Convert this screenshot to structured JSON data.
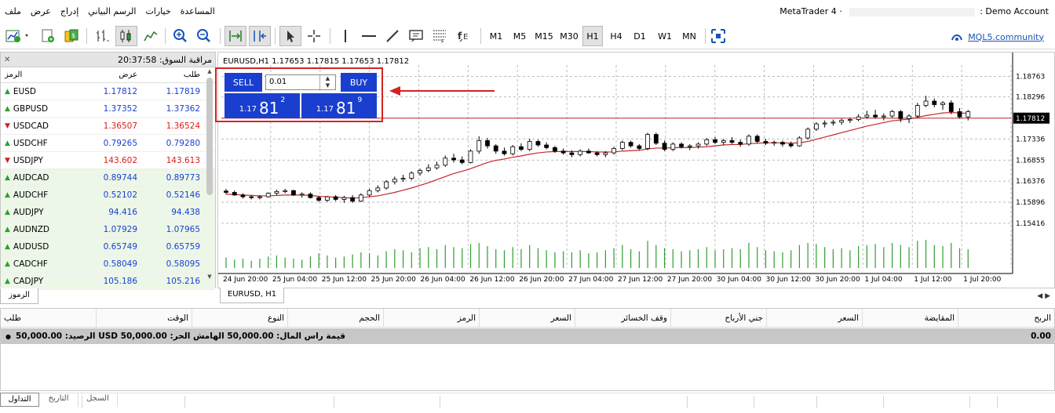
{
  "menubar": {
    "items": [
      "ملف",
      "عرض",
      "إدراج",
      "الرسم البياني",
      "خيارات",
      "المساعدة"
    ],
    "window_title_left": "MetaTrader 4 · ",
    "window_title_right": ": Demo Account"
  },
  "toolbar": {
    "timeframes": [
      "M1",
      "M5",
      "M15",
      "M30",
      "H1",
      "H4",
      "D1",
      "W1",
      "MN"
    ],
    "selected_timeframe": "H1",
    "mql5_link": "MQL5.community"
  },
  "market_watch": {
    "title": "مراقبة السوق:",
    "time": "20:37:58",
    "col_symbol": "الرمز",
    "col_bid": "عرض",
    "col_ask": "طلب",
    "tab_label": "الرموز",
    "rows": [
      {
        "symbol": "EUSD",
        "bid": "1.17812",
        "ask": "1.17819",
        "dir": "up",
        "color": "#1a3fcf",
        "hl": false
      },
      {
        "symbol": "GBPUSD",
        "bid": "1.37352",
        "ask": "1.37362",
        "dir": "up",
        "color": "#1a3fcf",
        "hl": false
      },
      {
        "symbol": "USDCAD",
        "bid": "1.36507",
        "ask": "1.36524",
        "dir": "down",
        "color": "#e01b1b",
        "hl": false
      },
      {
        "symbol": "USDCHF",
        "bid": "0.79265",
        "ask": "0.79280",
        "dir": "up",
        "color": "#1a3fcf",
        "hl": false
      },
      {
        "symbol": "USDJPY",
        "bid": "143.602",
        "ask": "143.613",
        "dir": "down",
        "color": "#e01b1b",
        "hl": false
      },
      {
        "symbol": "AUDCAD",
        "bid": "0.89744",
        "ask": "0.89773",
        "dir": "up",
        "color": "#1a3fcf",
        "hl": true
      },
      {
        "symbol": "AUDCHF",
        "bid": "0.52102",
        "ask": "0.52146",
        "dir": "up",
        "color": "#1a3fcf",
        "hl": true
      },
      {
        "symbol": "AUDJPY",
        "bid": "94.416",
        "ask": "94.438",
        "dir": "up",
        "color": "#1a3fcf",
        "hl": true
      },
      {
        "symbol": "AUDNZD",
        "bid": "1.07929",
        "ask": "1.07965",
        "dir": "up",
        "color": "#1a3fcf",
        "hl": true
      },
      {
        "symbol": "AUDUSD",
        "bid": "0.65749",
        "ask": "0.65759",
        "dir": "up",
        "color": "#1a3fcf",
        "hl": true
      },
      {
        "symbol": "CADCHF",
        "bid": "0.58049",
        "ask": "0.58095",
        "dir": "up",
        "color": "#1a3fcf",
        "hl": true
      },
      {
        "symbol": "CADJPY",
        "bid": "105.186",
        "ask": "105.216",
        "dir": "up",
        "color": "#1a3fcf",
        "hl": true
      }
    ]
  },
  "chart": {
    "header": "EURUSD,H1  1.17653 1.17815 1.17653 1.17812",
    "tab_label": "EURUSD, H1",
    "one_click": {
      "sell_label": "SELL",
      "buy_label": "BUY",
      "lot": "0.01",
      "sell_price_small": "1.17",
      "sell_price_big": "81",
      "sell_price_sup": "2",
      "buy_price_small": "1.17",
      "buy_price_big": "81",
      "buy_price_sup": "9"
    },
    "current_price_label": "1.17812",
    "price_axis": [
      "1.18763",
      "1.18296",
      "1.17812",
      "1.17336",
      "1.16855",
      "1.16376",
      "1.15896",
      "1.15416"
    ],
    "time_axis": [
      "24 Jun 20:00",
      "25 Jun 04:00",
      "25 Jun 12:00",
      "25 Jun 20:00",
      "26 Jun 04:00",
      "26 Jun 12:00",
      "26 Jun 20:00",
      "27 Jun 04:00",
      "27 Jun 12:00",
      "27 Jun 20:00",
      "30 Jun 04:00",
      "30 Jun 12:00",
      "30 Jun 20:00",
      "1 Jul 04:00",
      "1 Jul 12:00",
      "1 Jul 20:00"
    ],
    "colors": {
      "ma": "#c62828",
      "bull": "#ffffff",
      "bear": "#000000",
      "volume": "#2e9e2e",
      "price_line": "#c62828"
    }
  },
  "chart_data": {
    "type": "candlestick",
    "symbol": "EURUSD",
    "timeframe": "H1",
    "ylim": [
      1.152,
      1.1895
    ],
    "ohlc": [
      [
        1.1615,
        1.162,
        1.1608,
        1.1612
      ],
      [
        1.1612,
        1.1616,
        1.1604,
        1.1606
      ],
      [
        1.1606,
        1.161,
        1.1598,
        1.1602
      ],
      [
        1.1602,
        1.1605,
        1.1596,
        1.16
      ],
      [
        1.16,
        1.1606,
        1.1596,
        1.1602
      ],
      [
        1.1602,
        1.1612,
        1.16,
        1.161
      ],
      [
        1.161,
        1.1618,
        1.1606,
        1.1614
      ],
      [
        1.1614,
        1.162,
        1.161,
        1.1616
      ],
      [
        1.1616,
        1.1618,
        1.1604,
        1.1606
      ],
      [
        1.1606,
        1.1612,
        1.16,
        1.1608
      ],
      [
        1.1608,
        1.1612,
        1.1598,
        1.16
      ],
      [
        1.16,
        1.1604,
        1.159,
        1.1594
      ],
      [
        1.1594,
        1.1604,
        1.159,
        1.1602
      ],
      [
        1.1602,
        1.1606,
        1.1592,
        1.1596
      ],
      [
        1.1596,
        1.1604,
        1.1588,
        1.16
      ],
      [
        1.16,
        1.1606,
        1.1588,
        1.1592
      ],
      [
        1.1592,
        1.161,
        1.159,
        1.1606
      ],
      [
        1.1606,
        1.162,
        1.1602,
        1.1616
      ],
      [
        1.1616,
        1.1628,
        1.1612,
        1.1622
      ],
      [
        1.1622,
        1.164,
        1.1618,
        1.1636
      ],
      [
        1.1636,
        1.1648,
        1.163,
        1.1642
      ],
      [
        1.1642,
        1.1652,
        1.1636,
        1.1644
      ],
      [
        1.1644,
        1.166,
        1.164,
        1.1656
      ],
      [
        1.1656,
        1.1666,
        1.165,
        1.1662
      ],
      [
        1.1662,
        1.1676,
        1.1658,
        1.1668
      ],
      [
        1.1668,
        1.1682,
        1.1664,
        1.1674
      ],
      [
        1.1674,
        1.1696,
        1.167,
        1.169
      ],
      [
        1.169,
        1.17,
        1.168,
        1.1686
      ],
      [
        1.1686,
        1.1694,
        1.1676,
        1.168
      ],
      [
        1.168,
        1.171,
        1.1678,
        1.1706
      ],
      [
        1.1706,
        1.174,
        1.17,
        1.173
      ],
      [
        1.173,
        1.1736,
        1.1712,
        1.1718
      ],
      [
        1.1718,
        1.1722,
        1.17,
        1.1706
      ],
      [
        1.1706,
        1.1714,
        1.1696,
        1.17
      ],
      [
        1.17,
        1.172,
        1.1696,
        1.1716
      ],
      [
        1.1716,
        1.1724,
        1.1706,
        1.171
      ],
      [
        1.171,
        1.1734,
        1.1706,
        1.1728
      ],
      [
        1.1728,
        1.1732,
        1.1716,
        1.172
      ],
      [
        1.172,
        1.1726,
        1.171,
        1.1714
      ],
      [
        1.1714,
        1.1718,
        1.1702,
        1.1706
      ],
      [
        1.1706,
        1.1712,
        1.1698,
        1.1702
      ],
      [
        1.1702,
        1.1708,
        1.1692,
        1.1698
      ],
      [
        1.1698,
        1.171,
        1.1694,
        1.1706
      ],
      [
        1.1706,
        1.1712,
        1.17,
        1.1702
      ],
      [
        1.1702,
        1.1706,
        1.1694,
        1.1698
      ],
      [
        1.1698,
        1.1706,
        1.1692,
        1.1702
      ],
      [
        1.1702,
        1.1716,
        1.1698,
        1.1712
      ],
      [
        1.1712,
        1.173,
        1.1708,
        1.1726
      ],
      [
        1.1726,
        1.173,
        1.1714,
        1.1718
      ],
      [
        1.1718,
        1.1722,
        1.1708,
        1.1712
      ],
      [
        1.1712,
        1.1748,
        1.1708,
        1.1744
      ],
      [
        1.1744,
        1.1748,
        1.172,
        1.1724
      ],
      [
        1.1724,
        1.173,
        1.1706,
        1.171
      ],
      [
        1.171,
        1.1726,
        1.1706,
        1.1722
      ],
      [
        1.1722,
        1.1726,
        1.1712,
        1.1716
      ],
      [
        1.1716,
        1.1722,
        1.1708,
        1.1718
      ],
      [
        1.1718,
        1.1726,
        1.1712,
        1.1722
      ],
      [
        1.1722,
        1.1736,
        1.1718,
        1.1732
      ],
      [
        1.1732,
        1.1738,
        1.1722,
        1.1726
      ],
      [
        1.1726,
        1.1734,
        1.172,
        1.173
      ],
      [
        1.173,
        1.1738,
        1.1722,
        1.1726
      ],
      [
        1.1726,
        1.1732,
        1.1716,
        1.1722
      ],
      [
        1.1722,
        1.1744,
        1.1718,
        1.174
      ],
      [
        1.174,
        1.1744,
        1.1724,
        1.1728
      ],
      [
        1.1728,
        1.1734,
        1.172,
        1.1724
      ],
      [
        1.1724,
        1.173,
        1.1718,
        1.1726
      ],
      [
        1.1726,
        1.173,
        1.1716,
        1.1722
      ],
      [
        1.1722,
        1.1728,
        1.1714,
        1.1718
      ],
      [
        1.1718,
        1.174,
        1.1716,
        1.1736
      ],
      [
        1.1736,
        1.176,
        1.1732,
        1.1756
      ],
      [
        1.1756,
        1.1772,
        1.1752,
        1.1768
      ],
      [
        1.1768,
        1.1776,
        1.176,
        1.177
      ],
      [
        1.177,
        1.1778,
        1.1764,
        1.1772
      ],
      [
        1.1772,
        1.178,
        1.1766,
        1.1776
      ],
      [
        1.1776,
        1.1782,
        1.177,
        1.1778
      ],
      [
        1.1778,
        1.179,
        1.1774,
        1.1784
      ],
      [
        1.1784,
        1.1798,
        1.178,
        1.1788
      ],
      [
        1.1788,
        1.18,
        1.178,
        1.1784
      ],
      [
        1.1784,
        1.1792,
        1.1776,
        1.1786
      ],
      [
        1.1786,
        1.18,
        1.1782,
        1.1796
      ],
      [
        1.1796,
        1.18,
        1.1772,
        1.178
      ],
      [
        1.178,
        1.179,
        1.177,
        1.1786
      ],
      [
        1.1786,
        1.1816,
        1.1782,
        1.181
      ],
      [
        1.181,
        1.1832,
        1.1806,
        1.182
      ],
      [
        1.182,
        1.1826,
        1.1806,
        1.1812
      ],
      [
        1.1812,
        1.182,
        1.18,
        1.1816
      ],
      [
        1.1816,
        1.1822,
        1.179,
        1.1796
      ],
      [
        1.1796,
        1.1804,
        1.178,
        1.1784
      ],
      [
        1.1784,
        1.18,
        1.1776,
        1.1796
      ]
    ],
    "volume": [
      10,
      8,
      9,
      7,
      9,
      11,
      12,
      10,
      9,
      8,
      11,
      14,
      12,
      10,
      11,
      13,
      15,
      14,
      12,
      16,
      18,
      17,
      15,
      19,
      20,
      18,
      22,
      20,
      19,
      23,
      24,
      21,
      18,
      17,
      20,
      18,
      22,
      19,
      17,
      15,
      16,
      15,
      17,
      14,
      15,
      17,
      19,
      22,
      18,
      16,
      26,
      22,
      19,
      18,
      16,
      17,
      18,
      20,
      17,
      18,
      19,
      18,
      24,
      20,
      17,
      16,
      15,
      17,
      22,
      24,
      23,
      20,
      18,
      19,
      17,
      21,
      22,
      23,
      20,
      24,
      22,
      20,
      26,
      27,
      22,
      21,
      24,
      19,
      18
    ],
    "ma": [
      1.1608,
      1.1607,
      1.1606,
      1.1605,
      1.1604,
      1.1604,
      1.1605,
      1.1606,
      1.1606,
      1.1606,
      1.1605,
      1.1603,
      1.1602,
      1.1601,
      1.16,
      1.1599,
      1.16,
      1.1602,
      1.1604,
      1.1608,
      1.1612,
      1.1617,
      1.1622,
      1.1628,
      1.1634,
      1.1641,
      1.1648,
      1.1655,
      1.166,
      1.1666,
      1.1673,
      1.168,
      1.1685,
      1.1688,
      1.1692,
      1.1695,
      1.1699,
      1.1702,
      1.1704,
      1.1705,
      1.1705,
      1.1705,
      1.1705,
      1.1705,
      1.1704,
      1.1704,
      1.1704,
      1.1706,
      1.1707,
      1.1708,
      1.1711,
      1.1713,
      1.1713,
      1.1714,
      1.1714,
      1.1714,
      1.1715,
      1.1716,
      1.1718,
      1.172,
      1.1721,
      1.1721,
      1.1723,
      1.1724,
      1.1725,
      1.1725,
      1.1725,
      1.1724,
      1.1725,
      1.1728,
      1.1733,
      1.1738,
      1.1743,
      1.1748,
      1.1753,
      1.1758,
      1.1763,
      1.1767,
      1.1771,
      1.1775,
      1.1777,
      1.1779,
      1.1783,
      1.1787,
      1.179,
      1.1793,
      1.1794,
      1.1793,
      1.1792
    ],
    "current_price": 1.17812
  },
  "terminal": {
    "columns": [
      "طلب",
      "الوقت",
      "النوع",
      "الحجم",
      "الرمز",
      "السعر",
      "وقف الخسائر",
      "جني الأرباح",
      "السعر",
      "المقايضة",
      "الربح"
    ],
    "balance_text": "قيمة راس المال: 50,000.00  الهامش الحر: 50,000.00  USD  الرصيد: 50,000.00",
    "profit_total": "0.00",
    "tabs": [
      "التداول",
      "التاريخ",
      "السجل"
    ]
  }
}
